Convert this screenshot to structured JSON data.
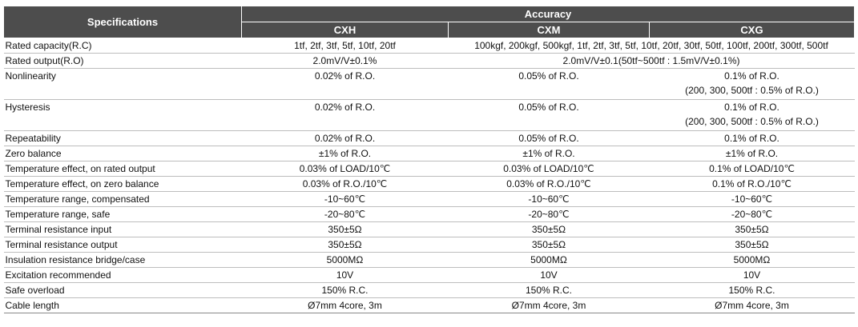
{
  "header": {
    "specifications": "Specifications",
    "accuracy": "Accuracy",
    "models": [
      "CXH",
      "CXM",
      "CXG"
    ]
  },
  "rows": [
    {
      "label": "Rated capacity(R.C)",
      "cxh": "1tf, 2tf, 3tf, 5tf, 10tf, 20tf",
      "cxm_cxg": "100kgf, 200kgf, 500kgf, 1tf, 2tf, 3tf, 5tf, 10tf, 20tf, 30tf, 50tf, 100tf, 200tf, 300tf, 500tf"
    },
    {
      "label": "Rated output(R.O)",
      "cxh": "2.0mV/V±0.1%",
      "cxm_cxg": "2.0mV/V±0.1(50tf~500tf : 1.5mV/V±0.1%)"
    },
    {
      "label": "Nonlinearity",
      "cxh": "0.02% of R.O.",
      "cxm": "0.05% of R.O.",
      "cxg": "0.1% of R.O.",
      "cxg_note": "(200, 300, 500tf : 0.5% of R.O.)"
    },
    {
      "label": "Hysteresis",
      "cxh": "0.02% of R.O.",
      "cxm": "0.05% of R.O.",
      "cxg": "0.1% of R.O.",
      "cxg_note": "(200, 300, 500tf : 0.5% of R.O.)"
    },
    {
      "label": "Repeatability",
      "cxh": "0.02% of R.O.",
      "cxm": "0.05% of R.O.",
      "cxg": "0.1% of R.O."
    },
    {
      "label": "Zero balance",
      "cxh": "±1% of R.O.",
      "cxm": "±1% of R.O.",
      "cxg": "±1% of R.O."
    },
    {
      "label": "Temperature effect, on rated output",
      "cxh": "0.03% of LOAD/10℃",
      "cxm": "0.03% of LOAD/10℃",
      "cxg": "0.1% of LOAD/10℃"
    },
    {
      "label": "Temperature effect, on zero balance",
      "cxh": "0.03% of R.O./10℃",
      "cxm": "0.03% of R.O./10℃",
      "cxg": "0.1% of R.O./10℃"
    },
    {
      "label": "Temperature range, compensated",
      "cxh": "-10~60℃",
      "cxm": "-10~60℃",
      "cxg": "-10~60℃"
    },
    {
      "label": "Temperature range, safe",
      "cxh": "-20~80℃",
      "cxm": "-20~80℃",
      "cxg": "-20~80℃"
    },
    {
      "label": "Terminal resistance input",
      "cxh": "350±5Ω",
      "cxm": "350±5Ω",
      "cxg": "350±5Ω"
    },
    {
      "label": "Terminal resistance output",
      "cxh": "350±5Ω",
      "cxm": "350±5Ω",
      "cxg": "350±5Ω"
    },
    {
      "label": "Insulation resistance bridge/case",
      "cxh": "5000MΩ",
      "cxm": "5000MΩ",
      "cxg": "5000MΩ"
    },
    {
      "label": "Excitation recommended",
      "cxh": "10V",
      "cxm": "10V",
      "cxg": "10V"
    },
    {
      "label": "Safe overload",
      "cxh": "150% R.C.",
      "cxm": "150% R.C.",
      "cxg": "150% R.C."
    },
    {
      "label": "Cable length",
      "cxh": "Ø7mm 4core, 3m",
      "cxm": "Ø7mm 4core, 3m",
      "cxg": "Ø7mm 4core, 3m"
    }
  ]
}
